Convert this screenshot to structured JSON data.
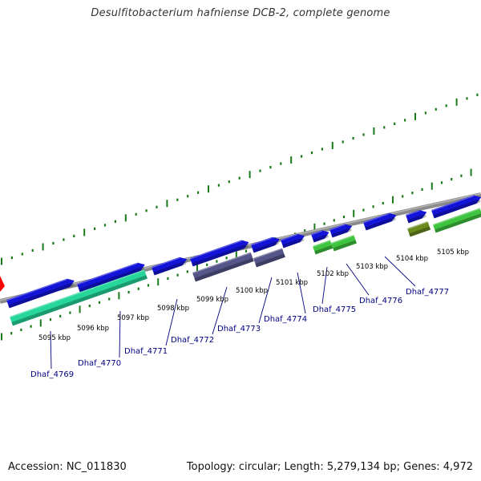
{
  "title": "Desulfitobacterium hafniense DCB-2, complete genome",
  "footer": {
    "accession": "Accession: NC_011830",
    "stats": "Topology: circular; Length: 5,279,134 bp; Genes: 4,972"
  },
  "colors": {
    "backbone": "#8a8a8a",
    "tick": "#1a7a1a",
    "cds": "#1414d8",
    "cds_purple": "#55558a",
    "rna_cyan": "#27d69a",
    "rna_green": "#3fc43f",
    "olive": "#6b8a1e",
    "label": "#000080",
    "marker": "#ff0000"
  },
  "kbp_labels": [
    "5095 kbp",
    "5096 kbp",
    "5097 kbp",
    "5098 kbp",
    "5099 kbp",
    "5100 kbp",
    "5101 kbp",
    "5102 kbp",
    "5103 kbp",
    "5104 kbp",
    "5105 kbp"
  ],
  "gene_labels": [
    "Dhaf_4769",
    "Dhaf_4770",
    "Dhaf_4771",
    "Dhaf_4772",
    "Dhaf_4773",
    "Dhaf_4774",
    "Dhaf_4775",
    "Dhaf_4776",
    "Dhaf_4777"
  ]
}
